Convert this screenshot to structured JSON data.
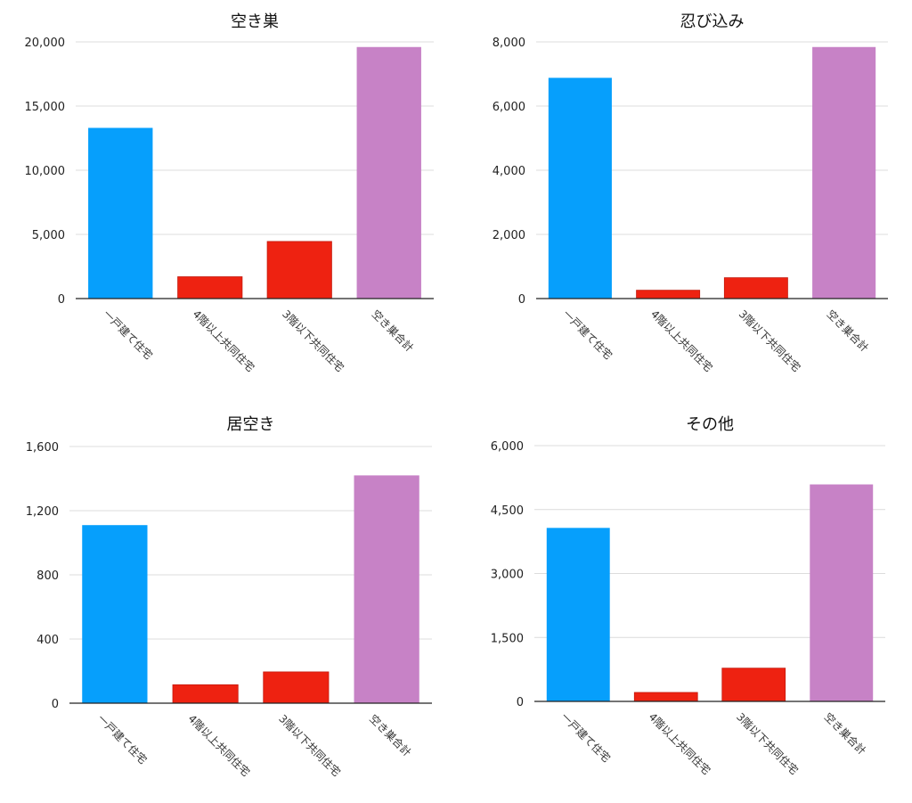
{
  "colors": {
    "blue": "#069ffc",
    "red": "#ee2211",
    "purple": "#c782c6",
    "grid": "#dcdcdc",
    "axis": "#222222"
  },
  "chart_data": [
    {
      "type": "bar",
      "title": "空き巣",
      "categories": [
        "一戸建て住宅",
        "4階以上共同住宅",
        "3階以下共同住宅",
        "空き巣合計"
      ],
      "values": [
        13300,
        1700,
        4450,
        19600
      ],
      "bar_colors": [
        "#069ffc",
        "#ee2211",
        "#ee2211",
        "#c782c6"
      ],
      "yticks": [
        "0",
        "5,000",
        "10,000",
        "15,000",
        "20,000"
      ],
      "ylim": [
        0,
        20000
      ],
      "grid": true,
      "legend": "none"
    },
    {
      "type": "bar",
      "title": "忍び込み",
      "categories": [
        "一戸建て住宅",
        "4階以上共同住宅",
        "3階以下共同住宅",
        "空き巣合計"
      ],
      "values": [
        6880,
        260,
        650,
        7840
      ],
      "bar_colors": [
        "#069ffc",
        "#ee2211",
        "#ee2211",
        "#c782c6"
      ],
      "yticks": [
        "0",
        "2,000",
        "4,000",
        "6,000",
        "8,000"
      ],
      "ylim": [
        0,
        8000
      ],
      "grid": true,
      "legend": "none"
    },
    {
      "type": "bar",
      "title": "居空き",
      "categories": [
        "一戸建て住宅",
        "4階以上共同住宅",
        "3階以下共同住宅",
        "空き巣合計"
      ],
      "values": [
        1110,
        115,
        195,
        1420
      ],
      "bar_colors": [
        "#069ffc",
        "#ee2211",
        "#ee2211",
        "#c782c6"
      ],
      "yticks": [
        "0",
        "400",
        "800",
        "1,200",
        "1,600"
      ],
      "ylim": [
        0,
        1600
      ],
      "grid": true,
      "legend": "none"
    },
    {
      "type": "bar",
      "title": "その他",
      "categories": [
        "一戸建て住宅",
        "4階以上共同住宅",
        "3階以下共同住宅",
        "空き巣合計"
      ],
      "values": [
        4070,
        210,
        780,
        5090
      ],
      "bar_colors": [
        "#069ffc",
        "#ee2211",
        "#ee2211",
        "#c782c6"
      ],
      "yticks": [
        "0",
        "1,500",
        "3,000",
        "4,500",
        "6,000"
      ],
      "ylim": [
        0,
        6000
      ],
      "grid": true,
      "legend": "none"
    }
  ]
}
